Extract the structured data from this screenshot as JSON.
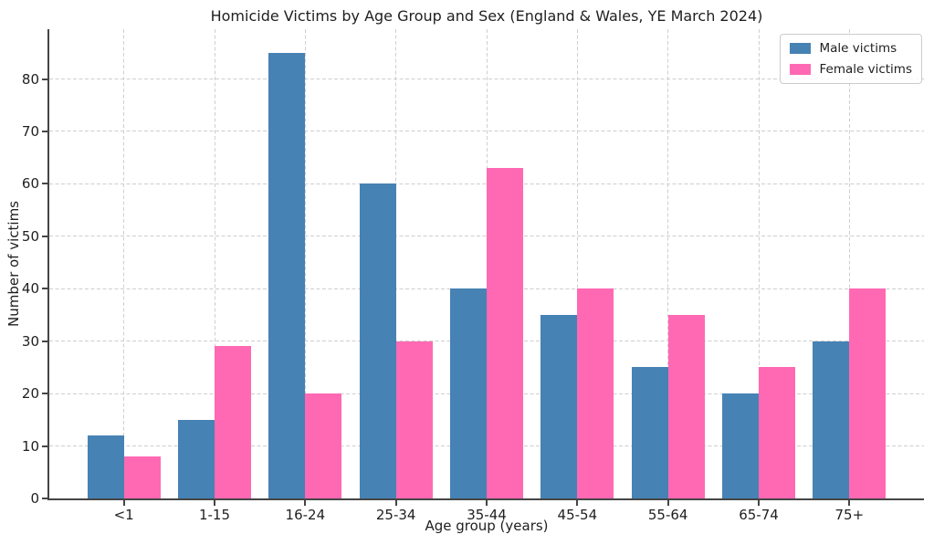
{
  "chart_data": {
    "type": "bar",
    "title": "Homicide Victims by Age Group and Sex (England & Wales, YE March 2024)",
    "xlabel": "Age group (years)",
    "ylabel": "Number of victims",
    "categories": [
      "<1",
      "1-15",
      "16-24",
      "25-34",
      "35-44",
      "45-54",
      "55-64",
      "65-74",
      "75+"
    ],
    "series": [
      {
        "name": "Male victims",
        "color": "#4682b4",
        "values": [
          12,
          15,
          85,
          60,
          40,
          35,
          25,
          20,
          30
        ]
      },
      {
        "name": "Female victims",
        "color": "#ff69b4",
        "values": [
          8,
          29,
          20,
          30,
          63,
          40,
          35,
          25,
          40
        ]
      }
    ],
    "yticks": [
      0,
      10,
      20,
      30,
      40,
      50,
      60,
      70,
      80
    ],
    "ylim": [
      0,
      89.5
    ],
    "grid": true,
    "grid_style": "dashed",
    "legend_position": "upper right",
    "colors": {
      "grid": "#cfcfcf",
      "spine": "#454545",
      "text": "#1f1f1f",
      "background": "#ffffff"
    }
  }
}
